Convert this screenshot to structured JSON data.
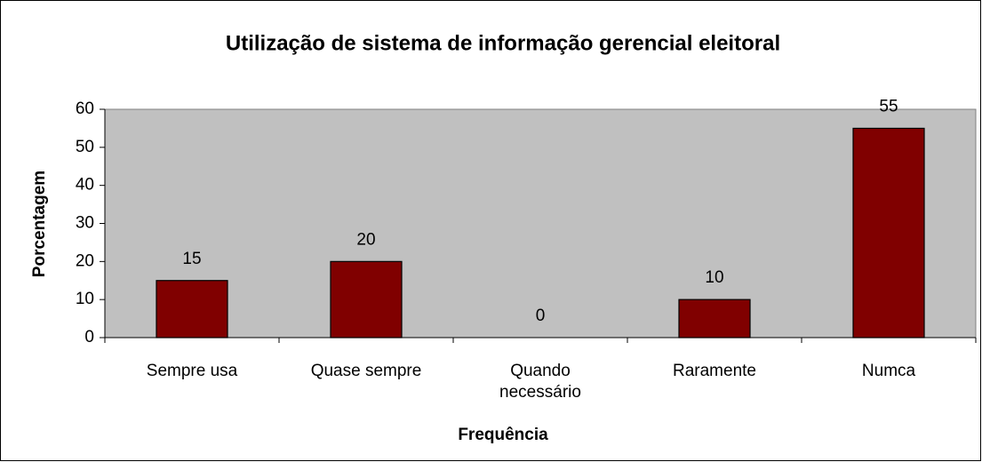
{
  "chart_data": {
    "type": "bar",
    "title": "Utilização de sistema de informação gerencial eleitoral",
    "xlabel": "Frequência",
    "ylabel": "Porcentagem",
    "categories": [
      "Sempre usa",
      "Quase sempre",
      "Quando necessário",
      "Raramente",
      "Numca"
    ],
    "values": [
      15,
      20,
      0,
      10,
      55
    ],
    "color": "#800000",
    "plot_background": "#c0c0c0",
    "ylim": [
      0,
      60
    ],
    "yticks": [
      0,
      10,
      20,
      30,
      40,
      50,
      60
    ],
    "grid": false
  }
}
